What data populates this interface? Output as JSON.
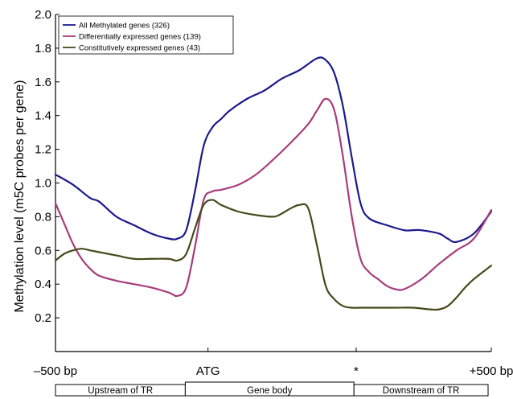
{
  "chart_data": {
    "type": "line",
    "title": "",
    "xlabel": "",
    "ylabel": "Methylation level (m5C probes per gene)",
    "ylim": [
      0.0,
      2.0
    ],
    "xlim": [
      0,
      100
    ],
    "y_ticks": [
      "0.2",
      "0.4",
      "0.6",
      "0.8",
      "1.0",
      "1.2",
      "1.4",
      "1.6",
      "1.8",
      "2.0"
    ],
    "x_tick_labels": [
      {
        "x": 0,
        "label": "–500 bp"
      },
      {
        "x": 35,
        "label": "ATG"
      },
      {
        "x": 69,
        "label": "*"
      },
      {
        "x": 100,
        "label": "+500 bp"
      }
    ],
    "regions": [
      {
        "label": "Upstream of TR",
        "from": 0,
        "to": 30
      },
      {
        "label": "Gene body",
        "from": 30,
        "to": 69
      },
      {
        "label": "Downstream of TR",
        "from": 69,
        "to": 100
      }
    ],
    "legend_position": "top-left",
    "grid": false,
    "series": [
      {
        "name": "All Methylated genes (326)",
        "color": "#1a1a8c",
        "x": [
          0,
          4,
          8,
          10,
          14,
          18,
          22,
          26,
          28,
          30,
          32,
          34,
          36,
          38,
          40,
          44,
          48,
          52,
          56,
          60,
          62,
          64,
          66,
          68,
          70,
          72,
          76,
          80,
          82,
          84,
          88,
          90,
          92,
          96,
          100
        ],
        "y": [
          1.05,
          0.99,
          0.91,
          0.89,
          0.8,
          0.75,
          0.7,
          0.67,
          0.67,
          0.72,
          0.95,
          1.22,
          1.33,
          1.38,
          1.43,
          1.5,
          1.55,
          1.62,
          1.67,
          1.74,
          1.73,
          1.65,
          1.45,
          1.15,
          0.88,
          0.79,
          0.75,
          0.72,
          0.72,
          0.72,
          0.7,
          0.67,
          0.65,
          0.7,
          0.83
        ]
      },
      {
        "name": "Differentially expressed genes (139)",
        "color": "#a83c7c",
        "x": [
          0,
          2,
          4,
          6,
          8,
          10,
          14,
          18,
          22,
          26,
          28,
          30,
          32,
          34,
          36,
          38,
          42,
          46,
          50,
          54,
          58,
          60,
          62,
          64,
          66,
          68,
          70,
          72,
          74,
          76,
          78,
          80,
          84,
          88,
          92,
          96,
          100
        ],
        "y": [
          0.88,
          0.76,
          0.64,
          0.55,
          0.49,
          0.45,
          0.42,
          0.4,
          0.38,
          0.35,
          0.33,
          0.38,
          0.62,
          0.9,
          0.95,
          0.96,
          0.99,
          1.05,
          1.14,
          1.24,
          1.35,
          1.43,
          1.5,
          1.43,
          1.15,
          0.8,
          0.55,
          0.47,
          0.43,
          0.39,
          0.37,
          0.37,
          0.43,
          0.52,
          0.6,
          0.67,
          0.84
        ]
      },
      {
        "name": "Constitutively expressed genes (43)",
        "color": "#454a1a",
        "x": [
          0,
          2,
          4,
          6,
          8,
          10,
          14,
          18,
          22,
          26,
          28,
          30,
          32,
          34,
          36,
          38,
          42,
          46,
          50,
          52,
          54,
          56,
          58,
          60,
          62,
          64,
          66,
          68,
          70,
          74,
          78,
          82,
          86,
          88,
          90,
          92,
          94,
          96,
          100
        ],
        "y": [
          0.54,
          0.58,
          0.6,
          0.61,
          0.6,
          0.59,
          0.57,
          0.55,
          0.55,
          0.55,
          0.54,
          0.58,
          0.73,
          0.87,
          0.9,
          0.87,
          0.83,
          0.81,
          0.8,
          0.82,
          0.85,
          0.87,
          0.85,
          0.63,
          0.39,
          0.31,
          0.27,
          0.26,
          0.26,
          0.26,
          0.26,
          0.26,
          0.25,
          0.25,
          0.27,
          0.32,
          0.38,
          0.43,
          0.51
        ]
      }
    ]
  }
}
